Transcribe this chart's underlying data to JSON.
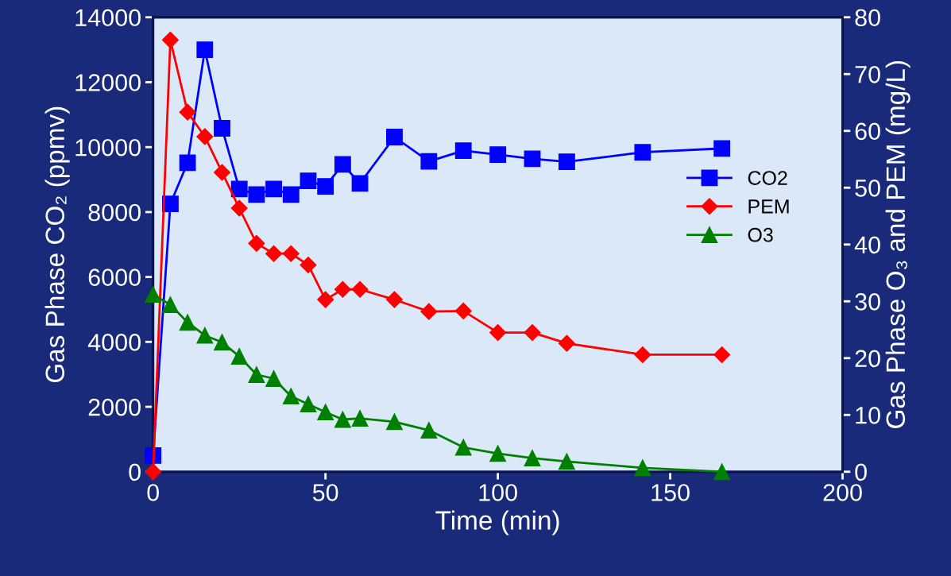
{
  "chart_data": {
    "type": "line",
    "xlabel": "Time (min)",
    "ylabel": "Gas Phase CO₂ (ppmv)",
    "y2label": "Gas Phase O₃ and PEM (mg/L)",
    "x": [
      0,
      5,
      10,
      15,
      20,
      25,
      30,
      35,
      40,
      45,
      50,
      55,
      60,
      70,
      80,
      90,
      100,
      110,
      120,
      142,
      165
    ],
    "series": [
      {
        "name": "CO2",
        "color": "#0000ff",
        "marker": "square",
        "values": [
          500,
          8250,
          9520,
          13000,
          10580,
          8710,
          8540,
          8710,
          8540,
          8960,
          8790,
          9470,
          8880,
          10310,
          9560,
          9890,
          9770,
          9640,
          9550,
          9840,
          9960
        ]
      },
      {
        "name": "PEM",
        "color": "#ff0000",
        "marker": "diamond",
        "axis": "y2",
        "values": [
          0,
          76,
          63.3,
          59.0,
          52.7,
          46.4,
          40.2,
          38.4,
          38.4,
          36.4,
          30.3,
          32.1,
          32.1,
          30.3,
          28.2,
          28.3,
          24.5,
          24.5,
          22.6,
          20.6,
          20.6
        ]
      },
      {
        "name": "O3",
        "color": "#008000",
        "marker": "triangle",
        "axis": "y2",
        "values": [
          31.2,
          29.4,
          26.3,
          24.0,
          22.8,
          20.3,
          17.1,
          16.4,
          13.3,
          11.9,
          10.5,
          9.2,
          9.4,
          8.8,
          7.3,
          4.3,
          3.2,
          2.4,
          1.8,
          0.7,
          0
        ]
      }
    ],
    "xlim": [
      0,
      200
    ],
    "xticks": [
      0,
      50,
      100,
      150,
      200
    ],
    "ylim": [
      0,
      14000
    ],
    "yticks": [
      0,
      2000,
      4000,
      6000,
      8000,
      10000,
      12000,
      14000
    ],
    "y2lim": [
      0,
      80
    ],
    "y2ticks": [
      0,
      10,
      20,
      30,
      40,
      50,
      60,
      70,
      80
    ],
    "legend": "right",
    "grid": false
  }
}
